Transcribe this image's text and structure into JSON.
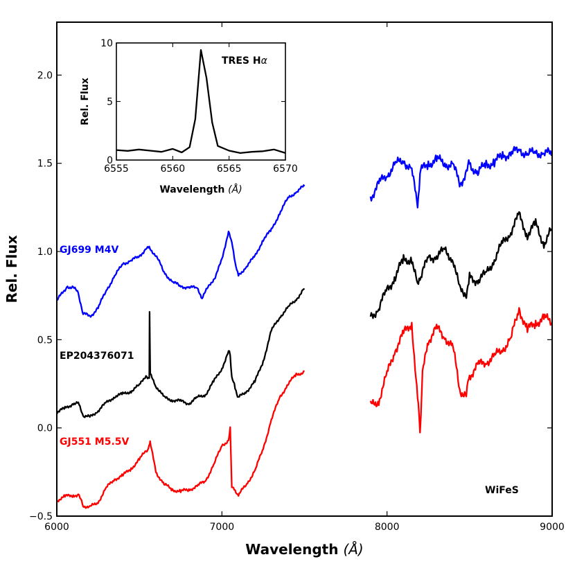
{
  "chart_data": {
    "type": "line",
    "title": "",
    "xlabel": "Wavelength",
    "xunit": "Å",
    "ylabel": "Rel. Flux",
    "xlim": [
      6000,
      9000
    ],
    "ylim": [
      -0.5,
      2.3
    ],
    "xticks": [
      "6000",
      "7000",
      "8000",
      "9000"
    ],
    "yticks": [
      "−0.5",
      "0.0",
      "0.5",
      "1.0",
      "1.5",
      "2.0"
    ],
    "series": [
      {
        "name": "GJ699 M4V",
        "color": "#0000ff",
        "offset": 0.7,
        "segments": [
          [
            [
              6000,
              0.72
            ],
            [
              6060,
              0.8
            ],
            [
              6100,
              0.8
            ],
            [
              6130,
              0.76
            ],
            [
              6160,
              0.65
            ],
            [
              6200,
              0.63
            ],
            [
              6250,
              0.68
            ],
            [
              6300,
              0.78
            ],
            [
              6350,
              0.86
            ],
            [
              6400,
              0.93
            ],
            [
              6450,
              0.95
            ],
            [
              6500,
              0.97
            ],
            [
              6540,
              1.02
            ],
            [
              6560,
              1.02
            ],
            [
              6600,
              0.98
            ],
            [
              6650,
              0.88
            ],
            [
              6700,
              0.83
            ],
            [
              6750,
              0.8
            ],
            [
              6800,
              0.8
            ],
            [
              6850,
              0.79
            ],
            [
              6880,
              0.74
            ],
            [
              6920,
              0.8
            ],
            [
              6960,
              0.86
            ],
            [
              7000,
              0.95
            ],
            [
              7040,
              1.12
            ],
            [
              7060,
              1.05
            ],
            [
              7080,
              0.94
            ],
            [
              7100,
              0.86
            ],
            [
              7150,
              0.92
            ],
            [
              7200,
              0.97
            ],
            [
              7250,
              1.07
            ],
            [
              7300,
              1.12
            ],
            [
              7350,
              1.22
            ],
            [
              7400,
              1.3
            ],
            [
              7450,
              1.34
            ],
            [
              7500,
              1.37
            ]
          ],
          [
            [
              7900,
              1.31
            ],
            [
              7950,
              1.38
            ],
            [
              8000,
              1.44
            ],
            [
              8050,
              1.49
            ],
            [
              8100,
              1.52
            ],
            [
              8150,
              1.46
            ],
            [
              8185,
              1.25
            ],
            [
              8200,
              1.45
            ],
            [
              8250,
              1.5
            ],
            [
              8300,
              1.52
            ],
            [
              8350,
              1.5
            ],
            [
              8400,
              1.49
            ],
            [
              8440,
              1.38
            ],
            [
              8480,
              1.45
            ],
            [
              8500,
              1.5
            ],
            [
              8550,
              1.44
            ],
            [
              8600,
              1.5
            ],
            [
              8650,
              1.5
            ],
            [
              8700,
              1.55
            ],
            [
              8750,
              1.55
            ],
            [
              8800,
              1.58
            ],
            [
              8850,
              1.55
            ],
            [
              8900,
              1.56
            ],
            [
              8950,
              1.56
            ],
            [
              9000,
              1.55
            ]
          ]
        ]
      },
      {
        "name": "EP204376071",
        "color": "#000000",
        "offset": 0.0,
        "segments": [
          [
            [
              6000,
              0.09
            ],
            [
              6050,
              0.11
            ],
            [
              6100,
              0.14
            ],
            [
              6130,
              0.14
            ],
            [
              6160,
              0.07
            ],
            [
              6200,
              0.06
            ],
            [
              6250,
              0.1
            ],
            [
              6300,
              0.14
            ],
            [
              6350,
              0.18
            ],
            [
              6400,
              0.19
            ],
            [
              6450,
              0.21
            ],
            [
              6500,
              0.24
            ],
            [
              6540,
              0.3
            ],
            [
              6560,
              0.28
            ],
            [
              6562,
              0.66
            ],
            [
              6566,
              0.3
            ],
            [
              6600,
              0.24
            ],
            [
              6650,
              0.17
            ],
            [
              6700,
              0.16
            ],
            [
              6750,
              0.15
            ],
            [
              6800,
              0.14
            ],
            [
              6850,
              0.17
            ],
            [
              6900,
              0.19
            ],
            [
              6950,
              0.26
            ],
            [
              7000,
              0.34
            ],
            [
              7040,
              0.43
            ],
            [
              7050,
              0.42
            ],
            [
              7060,
              0.28
            ],
            [
              7080,
              0.23
            ],
            [
              7100,
              0.17
            ],
            [
              7150,
              0.21
            ],
            [
              7200,
              0.26
            ],
            [
              7250,
              0.38
            ],
            [
              7300,
              0.55
            ],
            [
              7350,
              0.63
            ],
            [
              7400,
              0.68
            ],
            [
              7450,
              0.73
            ],
            [
              7500,
              0.79
            ]
          ],
          [
            [
              7900,
              0.63
            ],
            [
              7950,
              0.68
            ],
            [
              8000,
              0.78
            ],
            [
              8050,
              0.86
            ],
            [
              8100,
              0.95
            ],
            [
              8150,
              0.96
            ],
            [
              8185,
              0.8
            ],
            [
              8200,
              0.85
            ],
            [
              8250,
              0.96
            ],
            [
              8300,
              0.98
            ],
            [
              8350,
              1.0
            ],
            [
              8400,
              0.96
            ],
            [
              8440,
              0.78
            ],
            [
              8480,
              0.77
            ],
            [
              8500,
              0.85
            ],
            [
              8550,
              0.84
            ],
            [
              8600,
              0.87
            ],
            [
              8650,
              0.96
            ],
            [
              8700,
              1.04
            ],
            [
              8750,
              1.12
            ],
            [
              8800,
              1.2
            ],
            [
              8850,
              1.1
            ],
            [
              8900,
              1.15
            ],
            [
              8950,
              1.05
            ],
            [
              9000,
              1.12
            ]
          ]
        ]
      },
      {
        "name": "GJ551 M5.5V",
        "color": "#ff0000",
        "offset": -0.42,
        "segments": [
          [
            [
              6000,
              -0.41
            ],
            [
              6050,
              -0.39
            ],
            [
              6100,
              -0.38
            ],
            [
              6130,
              -0.38
            ],
            [
              6160,
              -0.44
            ],
            [
              6200,
              -0.45
            ],
            [
              6250,
              -0.42
            ],
            [
              6300,
              -0.34
            ],
            [
              6350,
              -0.29
            ],
            [
              6400,
              -0.27
            ],
            [
              6450,
              -0.23
            ],
            [
              6500,
              -0.18
            ],
            [
              6540,
              -0.13
            ],
            [
              6555,
              -0.12
            ],
            [
              6562,
              -0.09
            ],
            [
              6565,
              -0.08
            ],
            [
              6600,
              -0.25
            ],
            [
              6650,
              -0.32
            ],
            [
              6700,
              -0.35
            ],
            [
              6750,
              -0.36
            ],
            [
              6800,
              -0.35
            ],
            [
              6850,
              -0.33
            ],
            [
              6900,
              -0.3
            ],
            [
              6950,
              -0.21
            ],
            [
              7000,
              -0.1
            ],
            [
              7040,
              -0.07
            ],
            [
              7050,
              0.0
            ],
            [
              7060,
              -0.33
            ],
            [
              7080,
              -0.36
            ],
            [
              7100,
              -0.38
            ],
            [
              7150,
              -0.32
            ],
            [
              7200,
              -0.24
            ],
            [
              7250,
              -0.12
            ],
            [
              7300,
              0.05
            ],
            [
              7350,
              0.17
            ],
            [
              7400,
              0.25
            ],
            [
              7450,
              0.3
            ],
            [
              7500,
              0.32
            ]
          ],
          [
            [
              7900,
              0.12
            ],
            [
              7950,
              0.16
            ],
            [
              8000,
              0.3
            ],
            [
              8050,
              0.45
            ],
            [
              8100,
              0.53
            ],
            [
              8150,
              0.6
            ],
            [
              8185,
              0.16
            ],
            [
              8200,
              -0.01
            ],
            [
              8215,
              0.3
            ],
            [
              8250,
              0.5
            ],
            [
              8300,
              0.56
            ],
            [
              8350,
              0.52
            ],
            [
              8400,
              0.45
            ],
            [
              8440,
              0.22
            ],
            [
              8480,
              0.18
            ],
            [
              8500,
              0.3
            ],
            [
              8550,
              0.35
            ],
            [
              8600,
              0.38
            ],
            [
              8650,
              0.4
            ],
            [
              8700,
              0.45
            ],
            [
              8750,
              0.5
            ],
            [
              8800,
              0.68
            ],
            [
              8850,
              0.55
            ],
            [
              8900,
              0.6
            ],
            [
              8950,
              0.62
            ],
            [
              9000,
              0.6
            ]
          ]
        ]
      }
    ],
    "annotations": [
      "WiFeS"
    ],
    "inset": {
      "type": "line",
      "label": "TRES H",
      "label_symbol": "α",
      "xlabel": "Wavelength",
      "xunit": "Å",
      "ylabel": "Rel. Flux",
      "xlim": [
        6555,
        6570
      ],
      "ylim": [
        0,
        10
      ],
      "xticks": [
        "6555",
        "6560",
        "6565",
        "6570"
      ],
      "yticks": [
        "0",
        "5",
        "10"
      ],
      "color": "#000000",
      "x": [
        6555,
        6556,
        6557,
        6558,
        6559,
        6560,
        6560.8,
        6561.5,
        6562,
        6562.5,
        6563,
        6563.5,
        6564,
        6565,
        6566,
        6567,
        6568,
        6569,
        6570
      ],
      "y": [
        0.85,
        0.78,
        0.9,
        0.8,
        0.7,
        0.95,
        0.65,
        1.1,
        3.5,
        9.4,
        7.0,
        3.2,
        1.2,
        0.8,
        0.6,
        0.7,
        0.75,
        0.9,
        0.6
      ]
    }
  }
}
